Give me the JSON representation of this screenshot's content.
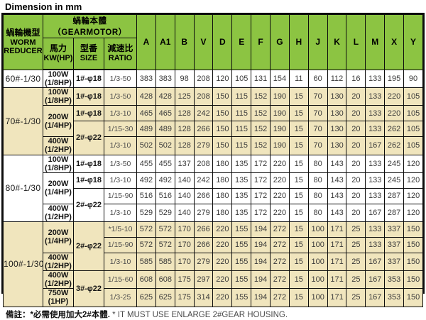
{
  "title": "Dimension in mm",
  "colors": {
    "header_green": "#8cc442",
    "band_cream": "#f0e5bd",
    "band_white": "#ffffff",
    "border": "#0d0d0d"
  },
  "footnote": {
    "zh": "備註：*必需使用加大2#本體.",
    "en": "* IT MUST USE ENLARGE 2#GEAR HOUSING."
  },
  "table": {
    "header": {
      "worm_reducer_zh": "蝸輪機型",
      "worm_reducer_en1": "WORM",
      "worm_reducer_en2": "REDUCER",
      "gearmotor": "蝸輪本體（GEARMOTOR）",
      "power_zh": "馬力",
      "power_en": "KW(HP)",
      "size_zh": "型番",
      "size_en": "SIZE",
      "ratio_zh": "減速比",
      "ratio_en": "RATIO",
      "dim_cols": [
        "A",
        "A1",
        "B",
        "V",
        "D",
        "E",
        "F",
        "G",
        "H",
        "J",
        "K",
        "L",
        "M",
        "X",
        "Y"
      ]
    },
    "rows": [
      {
        "band": "white",
        "model": {
          "text": "60#-1/30",
          "rowspan": 1
        },
        "power": {
          "text": "100W\n(1/8HP)",
          "rowspan": 1
        },
        "size": {
          "text": "1#-φ18",
          "rowspan": 1
        },
        "ratio": "1/3-50",
        "values": [
          383,
          383,
          98,
          208,
          120,
          105,
          131,
          154,
          11,
          60,
          112,
          16,
          133,
          195,
          90
        ]
      },
      {
        "band": "cream",
        "model": {
          "text": "70#-1/30",
          "rowspan": 4
        },
        "power": {
          "text": "100W\n(1/8HP)",
          "rowspan": 1
        },
        "size": {
          "text": "1#-φ18",
          "rowspan": 1
        },
        "ratio": "1/3-50",
        "values": [
          428,
          428,
          125,
          208,
          150,
          115,
          152,
          190,
          15,
          70,
          130,
          20,
          133,
          220,
          105
        ]
      },
      {
        "band": "cream",
        "power": {
          "text": "200W\n(1/4HP)",
          "rowspan": 2
        },
        "size": {
          "text": "1#-φ18",
          "rowspan": 1
        },
        "ratio": "1/3-10",
        "values": [
          465,
          465,
          128,
          242,
          150,
          115,
          152,
          190,
          15,
          70,
          130,
          20,
          133,
          220,
          105
        ]
      },
      {
        "band": "cream",
        "size": {
          "text": "2#-φ22",
          "rowspan": 2
        },
        "ratio": "1/15-30",
        "values": [
          489,
          489,
          128,
          266,
          150,
          115,
          152,
          190,
          15,
          70,
          130,
          20,
          133,
          262,
          105
        ]
      },
      {
        "band": "cream",
        "power": {
          "text": "400W\n(1/2HP)",
          "rowspan": 1
        },
        "ratio": "1/3-10",
        "values": [
          502,
          502,
          128,
          279,
          150,
          115,
          152,
          190,
          15,
          70,
          130,
          20,
          167,
          262,
          105
        ]
      },
      {
        "band": "white",
        "model": {
          "text": "80#-1/30",
          "rowspan": 4
        },
        "power": {
          "text": "100W\n(1/8HP)",
          "rowspan": 1
        },
        "size": {
          "text": "1#-φ18",
          "rowspan": 1
        },
        "ratio": "1/3-50",
        "values": [
          455,
          455,
          137,
          208,
          180,
          135,
          172,
          220,
          15,
          80,
          143,
          20,
          133,
          245,
          120
        ]
      },
      {
        "band": "white",
        "power": {
          "text": "200W\n(1/4HP)",
          "rowspan": 2
        },
        "size": {
          "text": "1#-φ18",
          "rowspan": 1
        },
        "ratio": "1/3-10",
        "values": [
          492,
          492,
          140,
          242,
          180,
          135,
          172,
          220,
          15,
          80,
          143,
          20,
          133,
          245,
          120
        ]
      },
      {
        "band": "white",
        "size": {
          "text": "2#-φ22",
          "rowspan": 2
        },
        "ratio": "1/15-90",
        "values": [
          516,
          516,
          140,
          266,
          180,
          135,
          172,
          220,
          15,
          80,
          143,
          20,
          133,
          287,
          120
        ]
      },
      {
        "band": "white",
        "power": {
          "text": "400W\n(1/2HP)",
          "rowspan": 1
        },
        "ratio": "1/3-10",
        "values": [
          529,
          529,
          140,
          279,
          180,
          135,
          172,
          220,
          15,
          80,
          143,
          20,
          167,
          287,
          120
        ]
      },
      {
        "band": "cream",
        "model": {
          "text": "100#-1/30",
          "rowspan": 5
        },
        "power": {
          "text": "200W\n(1/4HP)",
          "rowspan": 2
        },
        "size": {
          "text": "2#-φ22",
          "rowspan": 3
        },
        "ratio": "*1/5-10",
        "values": [
          572,
          572,
          170,
          266,
          220,
          155,
          194,
          272,
          15,
          100,
          171,
          25,
          133,
          337,
          150
        ]
      },
      {
        "band": "cream",
        "ratio": "1/15-90",
        "values": [
          572,
          572,
          170,
          266,
          220,
          155,
          194,
          272,
          15,
          100,
          171,
          25,
          133,
          337,
          150
        ]
      },
      {
        "band": "cream",
        "power": {
          "text": "400W\n(1/2HP)",
          "rowspan": 1
        },
        "ratio": "1/3-10",
        "values": [
          585,
          585,
          170,
          279,
          220,
          155,
          194,
          272,
          15,
          100,
          171,
          25,
          167,
          337,
          150
        ]
      },
      {
        "band": "cream",
        "power": {
          "text": "400W\n(1/2HP)",
          "rowspan": 1
        },
        "size": {
          "text": "3#-φ22",
          "rowspan": 2
        },
        "ratio": "1/15-60",
        "values": [
          608,
          608,
          175,
          297,
          220,
          155,
          194,
          272,
          15,
          100,
          171,
          25,
          167,
          353,
          150
        ]
      },
      {
        "band": "cream",
        "power": {
          "text": "750W\n(1HP)",
          "rowspan": 1
        },
        "ratio": "1/3-25",
        "values": [
          625,
          625,
          175,
          314,
          220,
          155,
          194,
          272,
          15,
          100,
          171,
          25,
          167,
          353,
          150
        ]
      }
    ]
  }
}
